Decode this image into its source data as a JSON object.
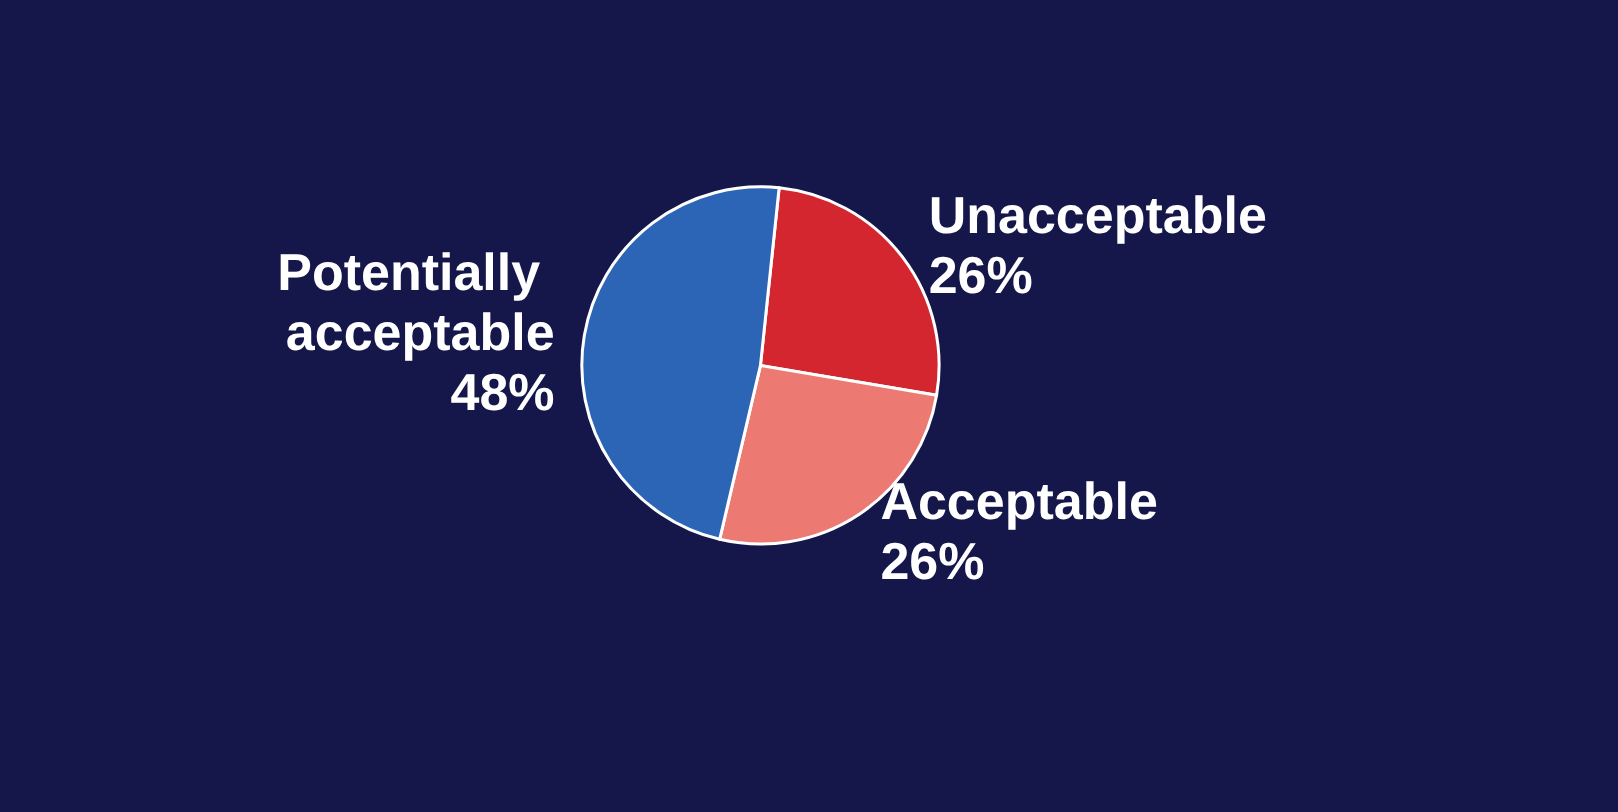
{
  "chart_data": {
    "type": "pie",
    "categories": [
      "Unacceptable",
      "Acceptable",
      "Potentially acceptable"
    ],
    "values": [
      26,
      26,
      48
    ],
    "colors": [
      "#d4262e",
      "#ec7a72",
      "#2c64b6"
    ],
    "value_labels": [
      "26%",
      "26%",
      "48%"
    ],
    "legend": false
  }
}
